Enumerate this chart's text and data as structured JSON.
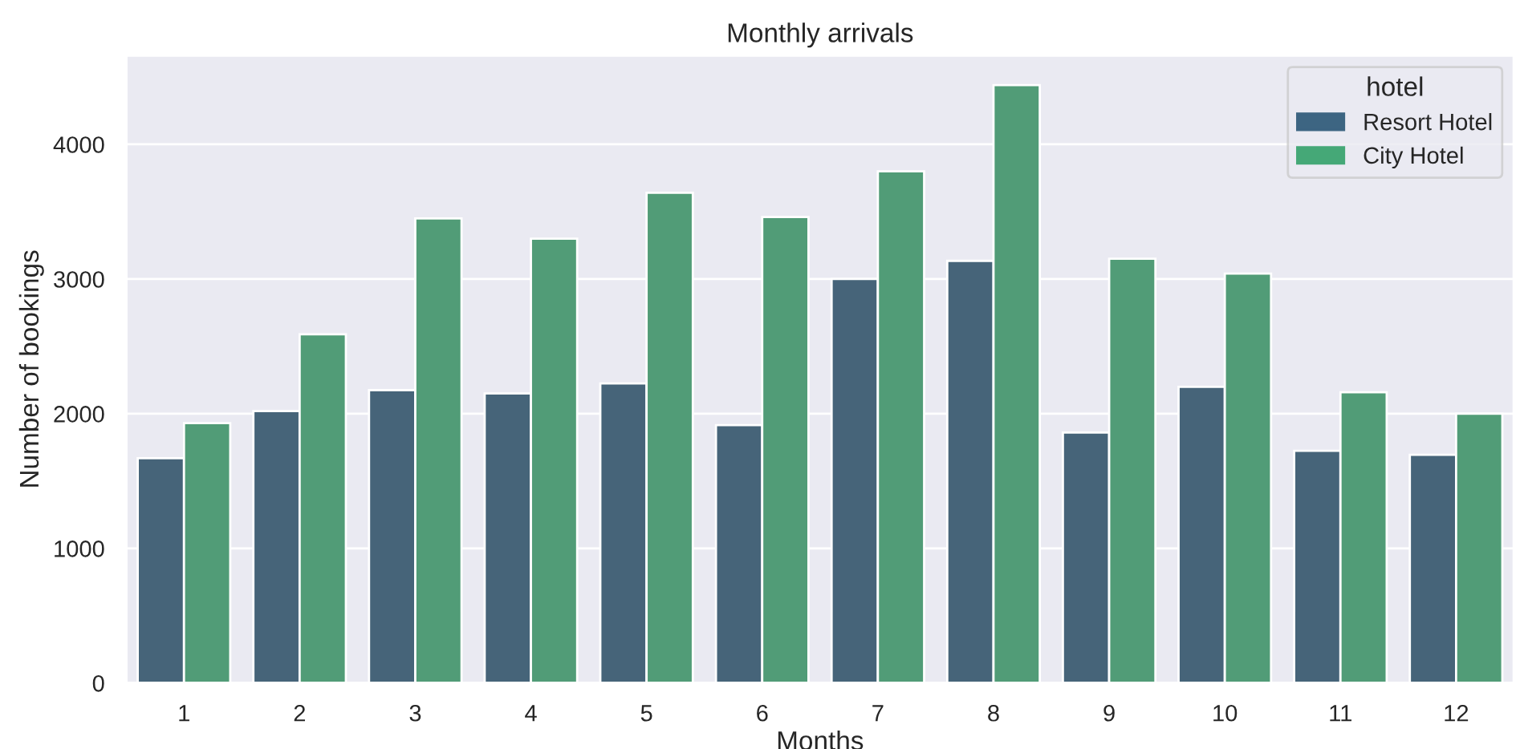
{
  "chart_data": {
    "type": "bar",
    "title": "Monthly arrivals",
    "xlabel": "Months",
    "ylabel": "Number of bookings",
    "legend_title": "hotel",
    "categories": [
      "1",
      "2",
      "3",
      "4",
      "5",
      "6",
      "7",
      "8",
      "9",
      "10",
      "11",
      "12"
    ],
    "series": [
      {
        "name": "Resort Hotel",
        "color": "#3d6582",
        "values": [
          1670,
          2020,
          2175,
          2150,
          2225,
          1915,
          3000,
          3135,
          1860,
          2200,
          1725,
          1695
        ]
      },
      {
        "name": "City Hotel",
        "color": "#45a877",
        "values": [
          1930,
          2590,
          3450,
          3300,
          3640,
          3460,
          3800,
          4440,
          3150,
          3040,
          2160,
          2000
        ]
      }
    ],
    "ylim": [
      0,
      4660
    ],
    "yticks": [
      0,
      1000,
      2000,
      3000,
      4000
    ],
    "grid": "y",
    "legend": "top right"
  }
}
